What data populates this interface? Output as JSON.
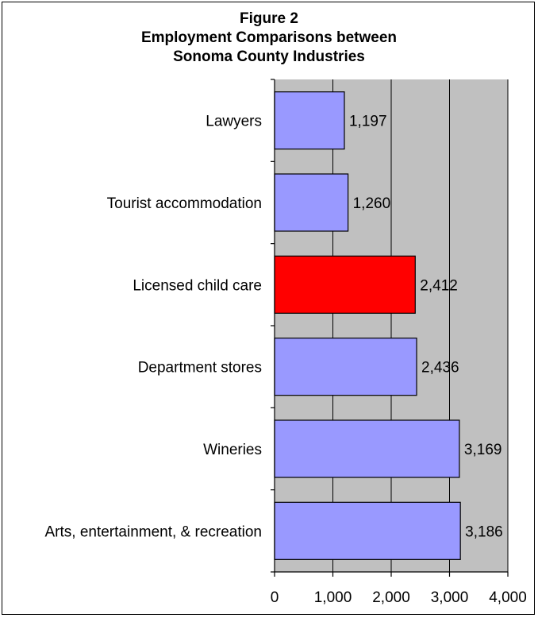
{
  "chart_data": {
    "type": "bar",
    "orientation": "horizontal",
    "title_lines": [
      "Figure 2",
      "Employment Comparisons between",
      "Sonoma County Industries"
    ],
    "categories": [
      "Lawyers",
      "Tourist accommodation",
      "Licensed child care",
      "Department stores",
      "Wineries",
      "Arts, entertainment, & recreation"
    ],
    "values": [
      1197,
      1260,
      2412,
      2436,
      3169,
      3186
    ],
    "value_labels": [
      "1,197",
      "1,260",
      "2,412",
      "2,436",
      "3,169",
      "3,186"
    ],
    "highlight_index": 2,
    "xlim": [
      0,
      4000
    ],
    "xticks": [
      0,
      1000,
      2000,
      3000,
      4000
    ],
    "xtick_labels": [
      "0",
      "1,000",
      "2,000",
      "3,000",
      "4,000"
    ],
    "grid": true,
    "colors": {
      "bar": "#9999ff",
      "highlight": "#ff0000",
      "plot_background": "#c0c0c0",
      "gridline": "#000000"
    }
  }
}
